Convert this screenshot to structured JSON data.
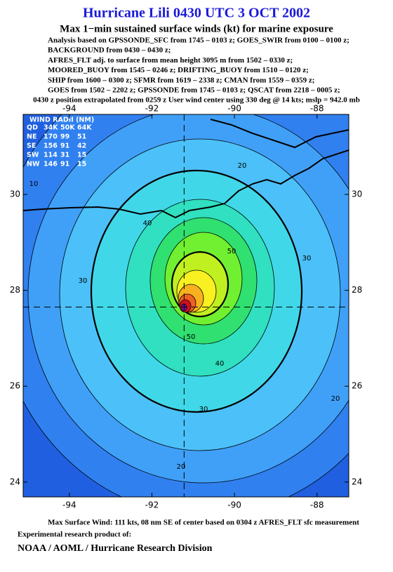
{
  "chart_data": {
    "type": "map",
    "title": "Hurricane Lili 0430 UTC 3 OCT 2002",
    "subtitle": "Max 1−min sustained surface winds (kt) for marine exposure",
    "analysis_lines": [
      "Analysis based on  GPSSONDE_SFC from 1745 – 0103 z;  GOES_SWIR from 0100 – 0100 z;",
      "BACKGROUND from 0430 – 0430 z;",
      "AFRES_FLT adj. to surface from mean height 3095 m from 1502 – 0330 z;",
      "MOORED_BUOY from 1545 – 0246 z;  DRIFTING_BUOY from 1510 – 0120 z;",
      "SHIP from 1600 – 0300 z;  SFMR from 1619 – 2338 z;  CMAN from 1559 – 0359 z;",
      "GOES from 1502 – 2202 z;  GPSSONDE from 1745 – 0103 z;  QSCAT from 2218 – 0005 z;",
      "0430 z position extrapolated from 0259 z User wind center using 330 deg @ 14 kts; mslp = 942.0 mb"
    ],
    "xlim": [
      -95.12,
      -87.23
    ],
    "ylim": [
      23.69,
      31.67
    ],
    "xticks": [
      -94,
      -92,
      -90,
      -88
    ],
    "yticks": [
      24,
      26,
      28,
      30
    ],
    "center_lon": -91.22,
    "center_lat": 27.65,
    "wind_radii": {
      "title": "WIND RADII (NM)",
      "columns": [
        "QD",
        "34K",
        "50K",
        "64K"
      ],
      "rows": [
        [
          "NE",
          170,
          99,
          51
        ],
        [
          "SE",
          156,
          91,
          42
        ],
        [
          "SW",
          114,
          31,
          15
        ],
        [
          "NW",
          146,
          91,
          15
        ]
      ]
    },
    "contour_labels": [
      10,
      20,
      20,
      20,
      30,
      30,
      30,
      40,
      40,
      50,
      50
    ],
    "footer": "Max Surface Wind: 111 kts, 08 nm SE of center based on 0304 z AFRES_FLT sfc measurement",
    "credit_intro": "Experimental research product of:",
    "credit": "NOAA / AOML / Hurricane Research Division"
  }
}
